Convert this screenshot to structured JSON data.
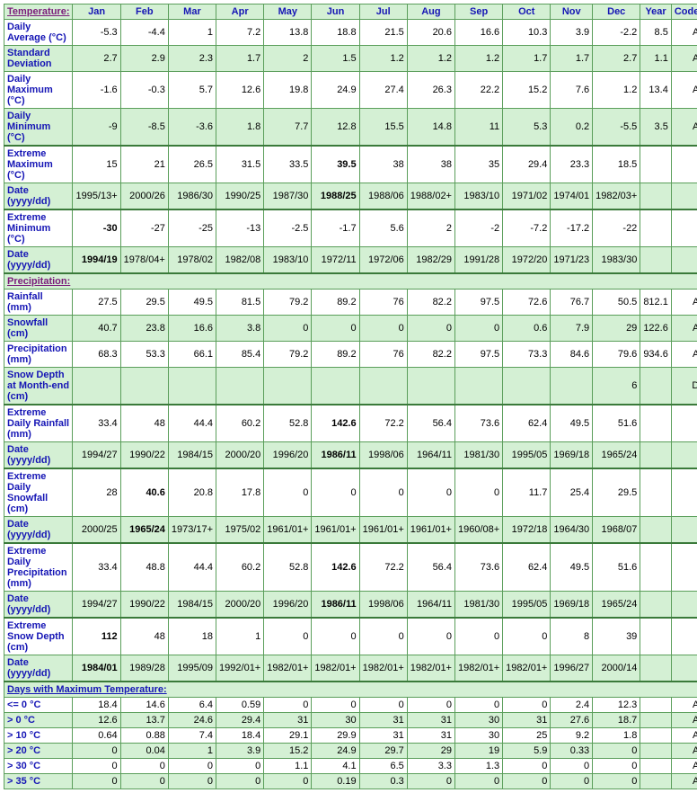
{
  "columns": [
    "Jan",
    "Feb",
    "Mar",
    "Apr",
    "May",
    "Jun",
    "Jul",
    "Aug",
    "Sep",
    "Oct",
    "Nov",
    "Dec",
    "Year",
    "Code"
  ],
  "colors": {
    "header_bg": "#d4f0d4",
    "border": "#5a9e5a",
    "label_text": "#1515b5",
    "section_link": "#7a1a7a"
  },
  "sections": [
    {
      "title": "Temperature:",
      "link": true,
      "header_row": true,
      "rows": [
        {
          "label": "Daily Average (°C)",
          "shade": "even",
          "cells": [
            "-5.3",
            "-4.4",
            "1",
            "7.2",
            "13.8",
            "18.8",
            "21.5",
            "20.6",
            "16.6",
            "10.3",
            "3.9",
            "-2.2",
            "8.5",
            "A"
          ]
        },
        {
          "label": "Standard Deviation",
          "shade": "odd",
          "cells": [
            "2.7",
            "2.9",
            "2.3",
            "1.7",
            "2",
            "1.5",
            "1.2",
            "1.2",
            "1.2",
            "1.7",
            "1.7",
            "2.7",
            "1.1",
            "A"
          ]
        },
        {
          "label": "Daily Maximum (°C)",
          "shade": "even",
          "cells": [
            "-1.6",
            "-0.3",
            "5.7",
            "12.6",
            "19.8",
            "24.9",
            "27.4",
            "26.3",
            "22.2",
            "15.2",
            "7.6",
            "1.2",
            "13.4",
            "A"
          ]
        },
        {
          "label": "Daily Minimum (°C)",
          "shade": "odd",
          "cells": [
            "-9",
            "-8.5",
            "-3.6",
            "1.8",
            "7.7",
            "12.8",
            "15.5",
            "14.8",
            "11",
            "5.3",
            "0.2",
            "-5.5",
            "3.5",
            "A"
          ]
        },
        {
          "label": "Extreme Maximum (°C)",
          "shade": "even",
          "thick": true,
          "cells": [
            "15",
            "21",
            "26.5",
            "31.5",
            "33.5",
            "39.5",
            "38",
            "38",
            "35",
            "29.4",
            "23.3",
            "18.5",
            "",
            ""
          ],
          "bold": [
            5
          ]
        },
        {
          "label": "Date (yyyy/dd)",
          "shade": "odd",
          "cells": [
            "1995/13+",
            "2000/26",
            "1986/30",
            "1990/25",
            "1987/30",
            "1988/25",
            "1988/06",
            "1988/02+",
            "1983/10",
            "1971/02",
            "1974/01",
            "1982/03+",
            "",
            ""
          ],
          "bold": [
            5
          ]
        },
        {
          "label": "Extreme Minimum (°C)",
          "shade": "even",
          "thick": true,
          "cells": [
            "-30",
            "-27",
            "-25",
            "-13",
            "-2.5",
            "-1.7",
            "5.6",
            "2",
            "-2",
            "-7.2",
            "-17.2",
            "-22",
            "",
            ""
          ],
          "bold": [
            0
          ]
        },
        {
          "label": "Date (yyyy/dd)",
          "shade": "odd",
          "cells": [
            "1994/19",
            "1978/04+",
            "1978/02",
            "1982/08",
            "1983/10",
            "1972/11",
            "1972/06",
            "1982/29",
            "1991/28",
            "1972/20",
            "1971/23",
            "1983/30",
            "",
            ""
          ],
          "bold": [
            0
          ]
        }
      ]
    },
    {
      "title": "Precipitation:",
      "link": true,
      "header_row": false,
      "thick": true,
      "rows": [
        {
          "label": "Rainfall (mm)",
          "shade": "even",
          "cells": [
            "27.5",
            "29.5",
            "49.5",
            "81.5",
            "79.2",
            "89.2",
            "76",
            "82.2",
            "97.5",
            "72.6",
            "76.7",
            "50.5",
            "812.1",
            "A"
          ]
        },
        {
          "label": "Snowfall (cm)",
          "shade": "odd",
          "cells": [
            "40.7",
            "23.8",
            "16.6",
            "3.8",
            "0",
            "0",
            "0",
            "0",
            "0",
            "0.6",
            "7.9",
            "29",
            "122.6",
            "A"
          ]
        },
        {
          "label": "Precipitation (mm)",
          "shade": "even",
          "cells": [
            "68.3",
            "53.3",
            "66.1",
            "85.4",
            "79.2",
            "89.2",
            "76",
            "82.2",
            "97.5",
            "73.3",
            "84.6",
            "79.6",
            "934.6",
            "A"
          ]
        },
        {
          "label": "Snow Depth at Month-end (cm)",
          "shade": "odd",
          "cells": [
            "",
            "",
            "",
            "",
            "",
            "",
            "",
            "",
            "",
            "",
            "",
            "6",
            "",
            "D"
          ]
        },
        {
          "label": "Extreme Daily Rainfall (mm)",
          "shade": "even",
          "thick": true,
          "cells": [
            "33.4",
            "48",
            "44.4",
            "60.2",
            "52.8",
            "142.6",
            "72.2",
            "56.4",
            "73.6",
            "62.4",
            "49.5",
            "51.6",
            "",
            ""
          ],
          "bold": [
            5
          ]
        },
        {
          "label": "Date (yyyy/dd)",
          "shade": "odd",
          "cells": [
            "1994/27",
            "1990/22",
            "1984/15",
            "2000/20",
            "1996/20",
            "1986/11",
            "1998/06",
            "1964/11",
            "1981/30",
            "1995/05",
            "1969/18",
            "1965/24",
            "",
            ""
          ],
          "bold": [
            5
          ]
        },
        {
          "label": "Extreme Daily Snowfall (cm)",
          "shade": "even",
          "thick": true,
          "cells": [
            "28",
            "40.6",
            "20.8",
            "17.8",
            "0",
            "0",
            "0",
            "0",
            "0",
            "11.7",
            "25.4",
            "29.5",
            "",
            ""
          ],
          "bold": [
            1
          ]
        },
        {
          "label": "Date (yyyy/dd)",
          "shade": "odd",
          "cells": [
            "2000/25",
            "1965/24",
            "1973/17+",
            "1975/02",
            "1961/01+",
            "1961/01+",
            "1961/01+",
            "1961/01+",
            "1960/08+",
            "1972/18",
            "1964/30",
            "1968/07",
            "",
            ""
          ],
          "bold": [
            1
          ]
        },
        {
          "label": "Extreme Daily Precipitation (mm)",
          "shade": "even",
          "thick": true,
          "cells": [
            "33.4",
            "48.8",
            "44.4",
            "60.2",
            "52.8",
            "142.6",
            "72.2",
            "56.4",
            "73.6",
            "62.4",
            "49.5",
            "51.6",
            "",
            ""
          ],
          "bold": [
            5
          ]
        },
        {
          "label": "Date (yyyy/dd)",
          "shade": "odd",
          "cells": [
            "1994/27",
            "1990/22",
            "1984/15",
            "2000/20",
            "1996/20",
            "1986/11",
            "1998/06",
            "1964/11",
            "1981/30",
            "1995/05",
            "1969/18",
            "1965/24",
            "",
            ""
          ],
          "bold": [
            5
          ]
        },
        {
          "label": "Extreme Snow Depth (cm)",
          "shade": "even",
          "thick": true,
          "cells": [
            "112",
            "48",
            "18",
            "1",
            "0",
            "0",
            "0",
            "0",
            "0",
            "0",
            "8",
            "39",
            "",
            ""
          ],
          "bold": [
            0
          ]
        },
        {
          "label": "Date (yyyy/dd)",
          "shade": "odd",
          "cells": [
            "1984/01",
            "1989/28",
            "1995/09",
            "1992/01+",
            "1982/01+",
            "1982/01+",
            "1982/01+",
            "1982/01+",
            "1982/01+",
            "1982/01+",
            "1996/27",
            "2000/14",
            "",
            ""
          ],
          "bold": [
            0
          ]
        }
      ]
    },
    {
      "title": "Days with Maximum Temperature:",
      "link": false,
      "header_row": false,
      "thick": true,
      "rows": [
        {
          "label": "<= 0 °C",
          "shade": "even",
          "cells": [
            "18.4",
            "14.6",
            "6.4",
            "0.59",
            "0",
            "0",
            "0",
            "0",
            "0",
            "0",
            "2.4",
            "12.3",
            "",
            "A"
          ]
        },
        {
          "label": "> 0 °C",
          "shade": "odd",
          "cells": [
            "12.6",
            "13.7",
            "24.6",
            "29.4",
            "31",
            "30",
            "31",
            "31",
            "30",
            "31",
            "27.6",
            "18.7",
            "",
            "A"
          ]
        },
        {
          "label": "> 10 °C",
          "shade": "even",
          "cells": [
            "0.64",
            "0.88",
            "7.4",
            "18.4",
            "29.1",
            "29.9",
            "31",
            "31",
            "30",
            "25",
            "9.2",
            "1.8",
            "",
            "A"
          ]
        },
        {
          "label": "> 20 °C",
          "shade": "odd",
          "cells": [
            "0",
            "0.04",
            "1",
            "3.9",
            "15.2",
            "24.9",
            "29.7",
            "29",
            "19",
            "5.9",
            "0.33",
            "0",
            "",
            "A"
          ]
        },
        {
          "label": "> 30 °C",
          "shade": "even",
          "cells": [
            "0",
            "0",
            "0",
            "0",
            "1.1",
            "4.1",
            "6.5",
            "3.3",
            "1.3",
            "0",
            "0",
            "0",
            "",
            "A"
          ]
        },
        {
          "label": "> 35 °C",
          "shade": "odd",
          "cells": [
            "0",
            "0",
            "0",
            "0",
            "0",
            "0.19",
            "0.3",
            "0",
            "0",
            "0",
            "0",
            "0",
            "",
            "A"
          ]
        }
      ]
    }
  ]
}
